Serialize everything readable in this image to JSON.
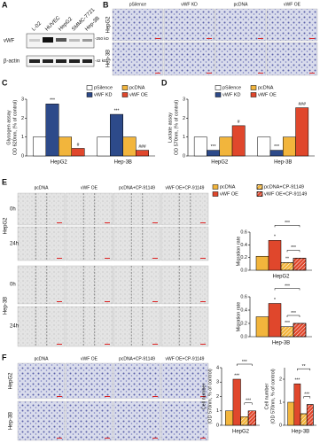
{
  "panel_labels": [
    "A",
    "B",
    "C",
    "D",
    "E",
    "F"
  ],
  "blot": {
    "lanes": [
      "L-02",
      "HUVEC",
      "HepG2",
      "SMMC-7721",
      "Hep-3B"
    ],
    "rows": [
      "vWF",
      "β-actin"
    ],
    "markers": [
      "-250 kD",
      "-42 kD"
    ]
  },
  "panel_b": {
    "columns": [
      "pSilence",
      "vWF KD",
      "pcDNA",
      "vWF OE"
    ],
    "rows": [
      "HepG2",
      "Hep-3B"
    ]
  },
  "panel_e": {
    "columns": [
      "pcDNA",
      "vWF OE",
      "pcDNA+CP-91149",
      "vWF OE+CP-91149"
    ],
    "rows": [
      "HepG2",
      "Hep-3B"
    ],
    "times": [
      "0h",
      "24h"
    ]
  },
  "panel_f": {
    "columns": [
      "pcDNA",
      "vWF OE",
      "pcDNA+CP-91149",
      "vWF OE+CP-91149"
    ],
    "rows": [
      "HepG2",
      "Hep-3B"
    ]
  },
  "chart_data": [
    {
      "type": "bar",
      "y_label": [
        "Glycogen assay",
        "OD 620nm, (% of control)"
      ],
      "categories": [
        "HepG2",
        "Hep-3B"
      ],
      "series": [
        {
          "name": "pSilence",
          "color": "#ffffff",
          "values": [
            1,
            1
          ]
        },
        {
          "name": "vWF KD",
          "color": "#2d4a8a",
          "values": [
            2.75,
            2.2
          ]
        },
        {
          "name": "pcDNA",
          "color": "#f2b53c",
          "values": [
            1,
            1
          ]
        },
        {
          "name": "vWF OE",
          "color": "#e0472c",
          "values": [
            0.4,
            0.3
          ]
        }
      ],
      "ylim": [
        0,
        3
      ],
      "yticks": [
        0,
        1,
        2,
        3
      ],
      "legend": "top-right",
      "annotations": [
        {
          "text": "***",
          "series": 1,
          "category": 0
        },
        {
          "text": "#",
          "series": 3,
          "category": 0
        },
        {
          "text": "***",
          "series": 1,
          "category": 1
        },
        {
          "text": "###",
          "series": 3,
          "category": 1
        }
      ]
    },
    {
      "type": "bar",
      "y_label": [
        "Lactate assay",
        "OD 570nm, (% of control)"
      ],
      "categories": [
        "HepG2",
        "Hep-3B"
      ],
      "series": [
        {
          "name": "pSilence",
          "color": "#ffffff",
          "values": [
            1,
            1
          ]
        },
        {
          "name": "vWF KD",
          "color": "#2d4a8a",
          "values": [
            0.3,
            0.3
          ]
        },
        {
          "name": "pcDNA",
          "color": "#f2b53c",
          "values": [
            1,
            1
          ]
        },
        {
          "name": "vWF OE",
          "color": "#e0472c",
          "values": [
            1.6,
            2.55
          ]
        }
      ],
      "ylim": [
        0,
        3
      ],
      "yticks": [
        0,
        1,
        2,
        3
      ],
      "legend": "top-right",
      "annotations": [
        {
          "text": "***",
          "series": 1,
          "category": 0
        },
        {
          "text": "#",
          "series": 3,
          "category": 0
        },
        {
          "text": "***",
          "series": 1,
          "category": 1
        },
        {
          "text": "###",
          "series": 3,
          "category": 1
        }
      ]
    },
    {
      "type": "bar",
      "y_label": [
        "Migration rate"
      ],
      "categories": [
        "HepG2"
      ],
      "series": [
        {
          "name": "pcDNA",
          "color": "#f2b53c",
          "values": [
            0.22
          ]
        },
        {
          "name": "vWF OE",
          "color": "#e0472c",
          "values": [
            0.47
          ]
        },
        {
          "name": "pcDNA+CP-91149",
          "color": "#f2b53c",
          "hatched": true,
          "values": [
            0.12
          ]
        },
        {
          "name": "vWF OE+CP-91149",
          "color": "#e0472c",
          "hatched": true,
          "values": [
            0.19
          ]
        }
      ],
      "ylim": [
        0,
        0.6
      ],
      "yticks": [
        {
          "value": 0,
          "label": "0.0"
        },
        {
          "value": 0.2,
          "label": "0.2"
        },
        {
          "value": 0.4,
          "label": "0.4"
        },
        {
          "value": 0.6,
          "label": "0.6"
        }
      ],
      "legend": "top",
      "annotations": [
        {
          "text": "*",
          "series": 1,
          "category": 0
        },
        {
          "text": "**",
          "series": 2,
          "category": 0
        }
      ],
      "brackets": [
        {
          "text": "***",
          "from": 2,
          "to": 3
        },
        {
          "text": "***",
          "from": 1,
          "to": 3
        }
      ]
    },
    {
      "type": "bar",
      "y_label": [
        "Migration rate"
      ],
      "categories": [
        "Hep-3B"
      ],
      "series": [
        {
          "color": "#f2b53c",
          "values": [
            0.3
          ]
        },
        {
          "color": "#e0472c",
          "values": [
            0.5
          ]
        },
        {
          "color": "#f2b53c",
          "hatched": true,
          "values": [
            0.15
          ]
        },
        {
          "color": "#e0472c",
          "hatched": true,
          "values": [
            0.2
          ]
        }
      ],
      "ylim": [
        0,
        0.6
      ],
      "yticks": [
        {
          "value": 0,
          "label": "0.0"
        },
        {
          "value": 0.2,
          "label": "0.2"
        },
        {
          "value": 0.4,
          "label": "0.4"
        },
        {
          "value": 0.6,
          "label": "0.6"
        }
      ],
      "annotations": [
        {
          "text": "*",
          "series": 1,
          "category": 0
        },
        {
          "text": "***",
          "series": 2,
          "category": 0
        }
      ],
      "brackets": [
        {
          "text": "***",
          "from": 2,
          "to": 3
        },
        {
          "text": "***",
          "from": 1,
          "to": 3
        }
      ]
    },
    {
      "type": "bar",
      "y_label": [
        "Cell number",
        "(OD 570nm, % of control)"
      ],
      "categories": [
        "HepG2"
      ],
      "series": [
        {
          "color": "#f2b53c",
          "values": [
            1
          ]
        },
        {
          "color": "#e0472c",
          "values": [
            3.2
          ]
        },
        {
          "color": "#f2b53c",
          "hatched": true,
          "values": [
            0.6
          ]
        },
        {
          "color": "#e0472c",
          "hatched": true,
          "values": [
            1
          ]
        }
      ],
      "ylim": [
        0,
        4
      ],
      "yticks": [
        0,
        1,
        2,
        3,
        4
      ],
      "annotations": [
        {
          "text": "***",
          "series": 1,
          "category": 0
        }
      ],
      "brackets": [
        {
          "text": "***",
          "from": 2,
          "to": 3
        },
        {
          "text": "***",
          "from": 1,
          "to": 3
        }
      ]
    },
    {
      "type": "bar",
      "y_label": [
        "Cell number",
        "(OD 570nm, % of control)"
      ],
      "categories": [
        "Hep-3B"
      ],
      "series": [
        {
          "color": "#f2b53c",
          "values": [
            1
          ]
        },
        {
          "color": "#e0472c",
          "values": [
            1.8
          ]
        },
        {
          "color": "#f2b53c",
          "hatched": true,
          "values": [
            0.5
          ]
        },
        {
          "color": "#e0472c",
          "hatched": true,
          "values": [
            0.9
          ]
        }
      ],
      "ylim": [
        0,
        2.5
      ],
      "yticks": [
        0,
        1,
        2
      ],
      "annotations": [
        {
          "text": "***",
          "series": 1,
          "category": 0
        }
      ],
      "brackets": [
        {
          "text": "***",
          "from": 2,
          "to": 3
        },
        {
          "text": "**",
          "from": 1,
          "to": 3
        }
      ]
    }
  ]
}
